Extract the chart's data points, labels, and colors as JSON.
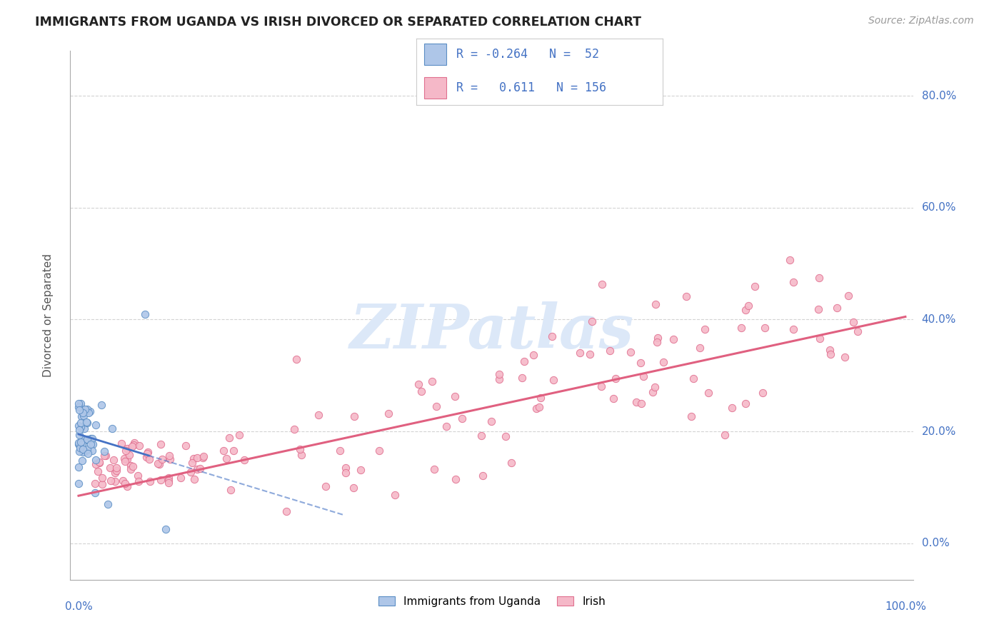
{
  "title": "IMMIGRANTS FROM UGANDA VS IRISH DIVORCED OR SEPARATED CORRELATION CHART",
  "source": "Source: ZipAtlas.com",
  "ylabel": "Divorced or Separated",
  "legend_label1": "Immigrants from Uganda",
  "legend_label2": "Irish",
  "R1": -0.264,
  "N1": 52,
  "R2": 0.611,
  "N2": 156,
  "color_blue_fill": "#aec6e8",
  "color_blue_edge": "#5b8ec4",
  "color_pink_fill": "#f5b8c8",
  "color_pink_edge": "#e07090",
  "color_blue_line": "#4472c4",
  "color_pink_line": "#e06080",
  "color_text_stat": "#4472c4",
  "watermark_color": "#dce8f8",
  "ytick_positions": [
    0.0,
    0.2,
    0.4,
    0.6,
    0.8
  ],
  "ytick_labels": [
    "0.0%",
    "20.0%",
    "40.0%",
    "60.0%",
    "80.0%"
  ],
  "xlim": [
    -0.01,
    1.01
  ],
  "ylim": [
    -0.065,
    0.88
  ]
}
